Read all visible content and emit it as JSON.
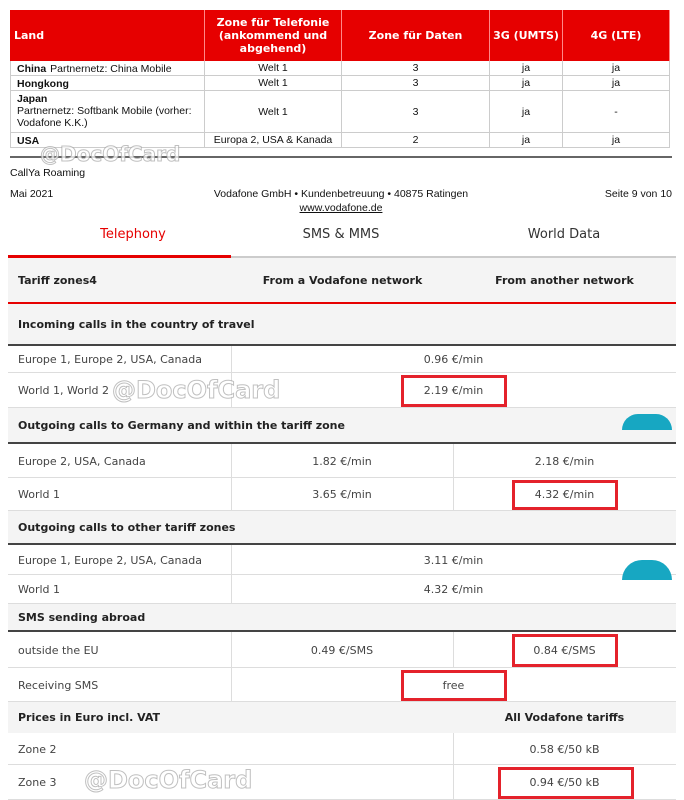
{
  "pdf_table": {
    "headers": [
      "Land",
      "Zone für Telefonie (ankommend und abgehend)",
      "Zone für Daten",
      "3G (UMTS)",
      "4G (LTE)"
    ],
    "rows": [
      {
        "country": "China",
        "note": "Partnernetz: China Mobile",
        "zone_tel": "Welt 1",
        "zone_data": "3",
        "g3": "ja",
        "g4": "ja"
      },
      {
        "country": "Hongkong",
        "note": "",
        "zone_tel": "Welt 1",
        "zone_data": "3",
        "g3": "ja",
        "g4": "ja"
      },
      {
        "country": "Japan",
        "note": "Partnernetz: Softbank Mobile (vorher: Vodafone K.K.)",
        "zone_tel": "Welt 1",
        "zone_data": "3",
        "g3": "ja",
        "g4": "-"
      },
      {
        "country": "USA",
        "note": "",
        "zone_tel": "Europa 2, USA & Kanada",
        "zone_data": "2",
        "g3": "ja",
        "g4": "ja"
      }
    ]
  },
  "footer": {
    "product": "CallYa Roaming",
    "date": "Mai 2021",
    "company": "Vodafone GmbH • Kundenbetreuung • 40875 Ratingen",
    "url": "www.vodafone.de",
    "page": "Seite 9 von 10"
  },
  "tabs": [
    {
      "label": "Telephony",
      "active": true
    },
    {
      "label": "SMS & MMS",
      "active": false
    },
    {
      "label": "World Data",
      "active": false
    }
  ],
  "table_header": [
    "Tariff zones4",
    "From a Vodafone network",
    "From another network"
  ],
  "sections": [
    {
      "title": "Incoming calls in the country of travel",
      "rows": [
        {
          "label": "Europe 1, Europe 2, USA, Canada",
          "value": "0.96 €/min"
        },
        {
          "label": "World 1, World 2",
          "value": "2.19 €/min",
          "highlight": true
        }
      ]
    },
    {
      "title": "Outgoing calls to Germany and within the tariff zone",
      "rows": [
        {
          "label": "Europe 2, USA, Canada",
          "vodafone": "1.82 €/min",
          "other": "2.18 €/min"
        },
        {
          "label": "World 1",
          "vodafone": "3.65 €/min",
          "other": "4.32 €/min",
          "highlight": "other"
        }
      ]
    },
    {
      "title": "Outgoing calls to other tariff zones",
      "rows": [
        {
          "label": "Europe 1, Europe 2, USA, Canada",
          "value": "3.11 €/min"
        },
        {
          "label": "World 1",
          "value": "4.32 €/min"
        }
      ]
    },
    {
      "title": "SMS sending abroad",
      "rows": [
        {
          "label": "outside the EU",
          "vodafone": "0.49 €/SMS",
          "other": "0.84 €/SMS",
          "highlight": "other"
        },
        {
          "label": "Receiving SMS",
          "value": "free",
          "highlight": true
        }
      ]
    },
    {
      "title": "Prices in Euro incl. VAT",
      "right": "All Vodafone tariffs",
      "rows": [
        {
          "label": "Zone 2",
          "data": "0.58 €/50 kB"
        },
        {
          "label": "Zone 3",
          "data": "0.94 €/50 kB",
          "highlight": true
        }
      ]
    }
  ],
  "watermark": "@DocOfCard",
  "colors": {
    "accent": "#e60000",
    "highlight_box": "#e4222b",
    "fab": "#17a7c2"
  }
}
